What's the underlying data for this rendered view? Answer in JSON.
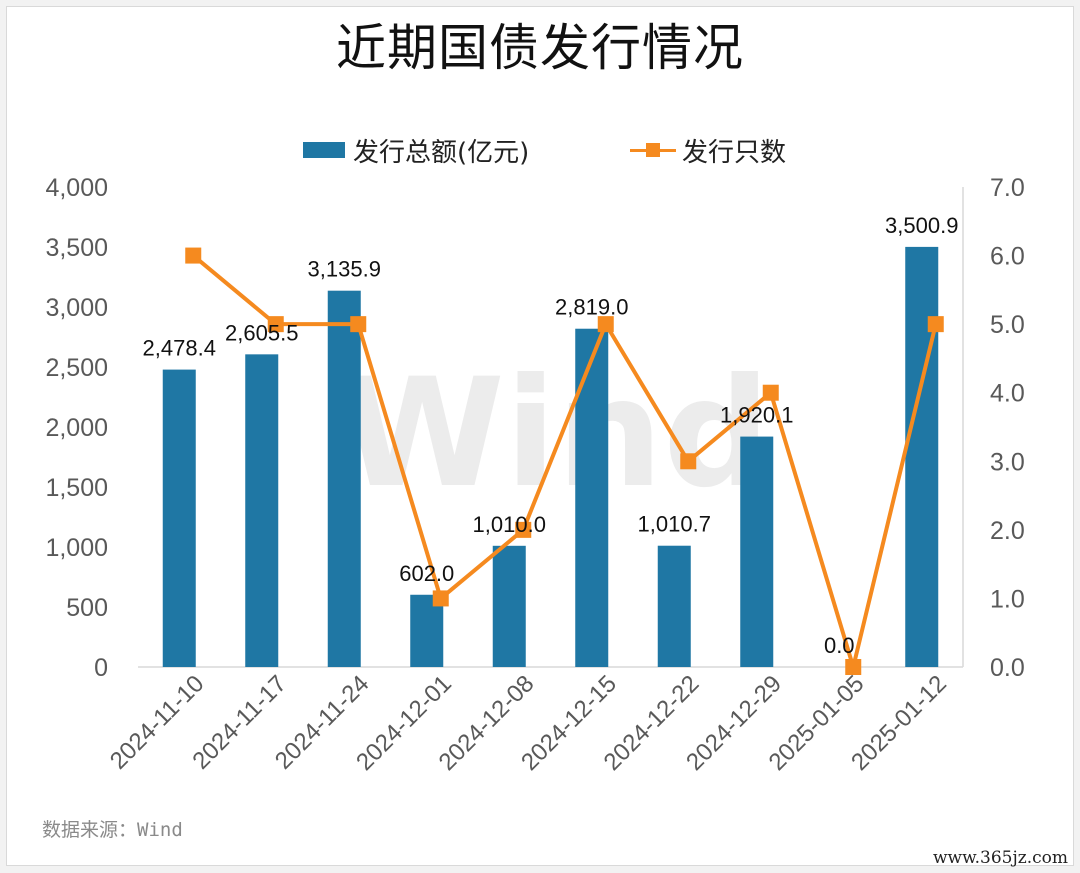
{
  "title": "近期国债发行情况",
  "watermark": "Wind",
  "source": "数据来源：Wind",
  "site": "www.365jz.com",
  "colors": {
    "bar": "#1f77a4",
    "line": "#f58a1f",
    "axis_text": "#595959",
    "watermark": "#ececec"
  },
  "chart_data": {
    "type": "bar",
    "title": "近期国债发行情况",
    "categories": [
      "2024-11-10",
      "2024-11-17",
      "2024-11-24",
      "2024-12-01",
      "2024-12-08",
      "2024-12-15",
      "2024-12-22",
      "2024-12-29",
      "2025-01-05",
      "2025-01-12"
    ],
    "series": [
      {
        "name": "发行总额(亿元)",
        "type": "bar",
        "axis": "left",
        "values": [
          2478.4,
          2605.5,
          3135.9,
          602.0,
          1010.0,
          2819.0,
          1010.7,
          1920.1,
          0.0,
          3500.9
        ],
        "labels": [
          "2,478.4",
          "2,605.5",
          "3,135.9",
          "602.0",
          "1,010.0",
          "2,819.0",
          "1,010.7",
          "1,920.1",
          "0.0",
          "3,500.9"
        ]
      },
      {
        "name": "发行只数",
        "type": "line",
        "axis": "right",
        "values": [
          6,
          5,
          5,
          1,
          2,
          5,
          3,
          4,
          0,
          5
        ]
      }
    ],
    "ylim_left": [
      0,
      4000
    ],
    "yticks_left": [
      "0",
      "500",
      "1,000",
      "1,500",
      "2,000",
      "2,500",
      "3,000",
      "3,500",
      "4,000"
    ],
    "ylim_right": [
      0,
      7
    ],
    "yticks_right": [
      "0.0",
      "1.0",
      "2.0",
      "3.0",
      "4.0",
      "5.0",
      "6.0",
      "7.0"
    ],
    "legend_position": "top-center",
    "grid": false
  }
}
